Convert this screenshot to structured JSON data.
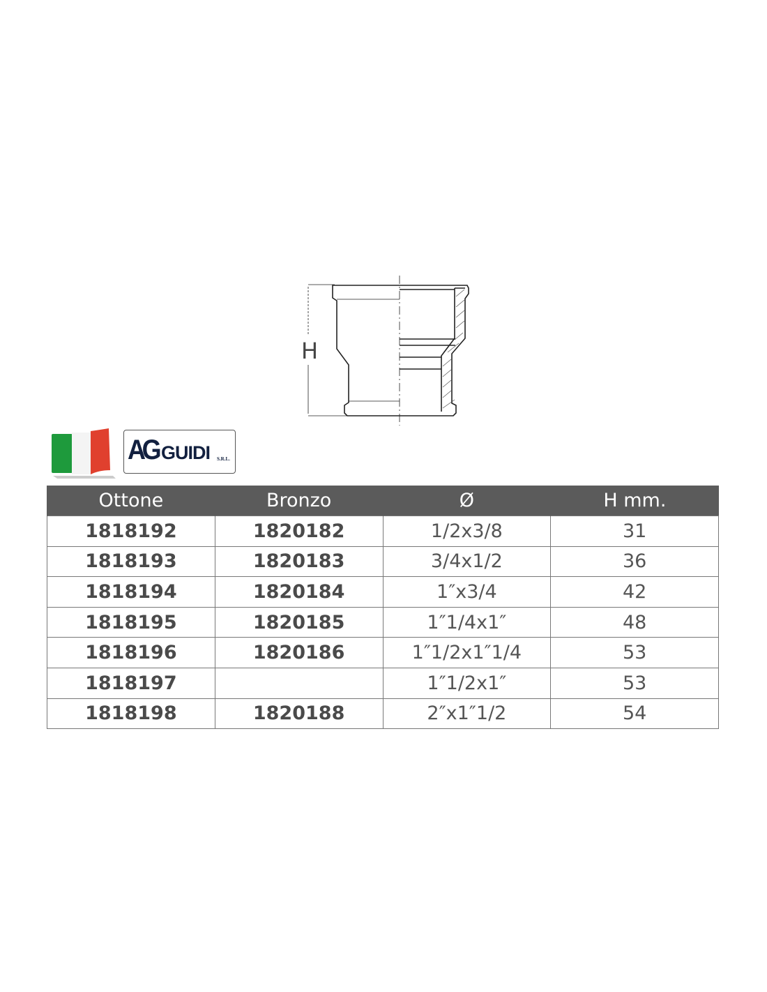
{
  "drawing": {
    "dimension_label": "H"
  },
  "logo": {
    "mark": "AG",
    "name": "GUIDI",
    "suffix": "S.R.L.",
    "flag_colors": [
      "#1e9a3c",
      "#ffffff",
      "#e0402e"
    ]
  },
  "table": {
    "header_color": "#5b5b5b",
    "columns": [
      "Ottone",
      "Bronzo",
      "Ø",
      "H mm."
    ],
    "rows": [
      [
        "1818192",
        "1820182",
        "1/2x3/8",
        "31"
      ],
      [
        "1818193",
        "1820183",
        "3/4x1/2",
        "36"
      ],
      [
        "1818194",
        "1820184",
        "1″x3/4",
        "42"
      ],
      [
        "1818195",
        "1820185",
        "1″1/4x1″",
        "48"
      ],
      [
        "1818196",
        "1820186",
        "1″1/2x1″1/4",
        "53"
      ],
      [
        "1818197",
        "",
        "1″1/2x1″",
        "53"
      ],
      [
        "1818198",
        "1820188",
        "2″x1″1/2",
        "54"
      ]
    ]
  }
}
